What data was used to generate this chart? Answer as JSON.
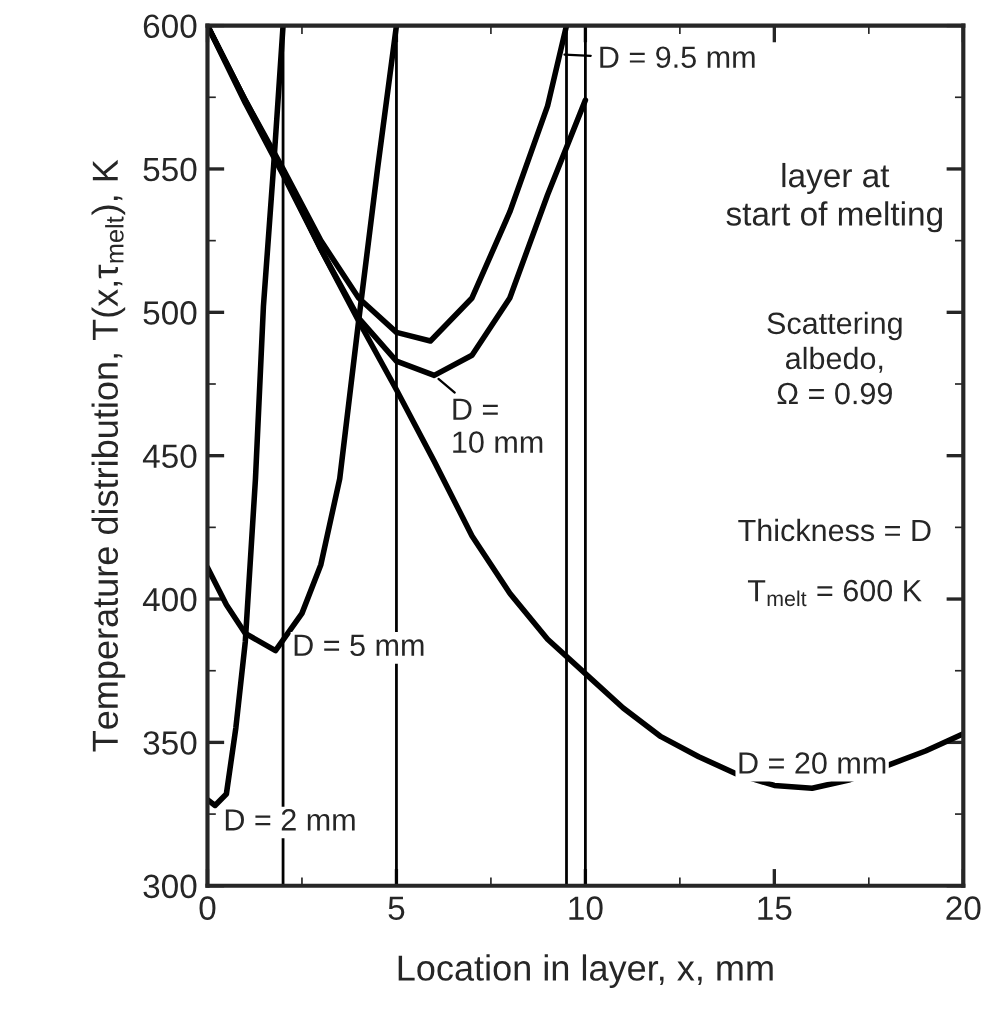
{
  "chart_data": {
    "type": "line",
    "xlabel": "Location in layer, x, mm",
    "ylabel": "Temperature distribution, T(x,τ$_{melt}$), K",
    "xlim": [
      0,
      20
    ],
    "xticks": [
      0,
      5,
      10,
      15,
      20
    ],
    "ylim": [
      300,
      600
    ],
    "yticks": [
      300,
      350,
      400,
      450,
      500,
      550,
      600
    ],
    "grid": false,
    "marker": "none",
    "line_style": "solid",
    "series": [
      {
        "color": "#000000",
        "x": [
          0,
          0.2,
          0.5,
          0.75,
          1.0,
          1.27,
          1.48,
          1.75,
          2.0
        ],
        "values": [
          330,
          328,
          332,
          355,
          385,
          442,
          502,
          551,
          600
        ]
      },
      {
        "color": "#000000",
        "x": [
          0,
          0.5,
          1.0,
          1.8,
          2.5,
          3.0,
          3.5,
          4.0,
          4.5,
          5.0
        ],
        "values": [
          411,
          398,
          388,
          382,
          395,
          412,
          442,
          497,
          550,
          600
        ]
      },
      {
        "color": "#000000",
        "x": [
          0,
          1,
          2,
          3,
          4,
          5,
          5.9,
          7,
          8,
          9,
          9.5
        ],
        "values": [
          600,
          574,
          550,
          525,
          505,
          493,
          490,
          505,
          535,
          572,
          600
        ]
      },
      {
        "color": "#000000",
        "x": [
          0,
          1,
          2,
          3,
          4,
          5,
          6,
          7,
          8,
          9,
          10
        ],
        "values": [
          600,
          574,
          549,
          522,
          498,
          483,
          478,
          485,
          505,
          541,
          574
        ]
      },
      {
        "color": "#000000",
        "x": [
          0,
          1,
          2,
          3,
          4,
          5,
          6,
          7,
          8,
          9,
          10,
          11,
          12,
          13,
          14,
          15,
          16,
          17,
          18,
          19,
          20
        ],
        "values": [
          600,
          573,
          548,
          522,
          497,
          473,
          448,
          422,
          402,
          386,
          374,
          362,
          352,
          345,
          339,
          335,
          334,
          337,
          342,
          347,
          353
        ]
      }
    ],
    "ref_lines": [
      {
        "axis": "x",
        "value": 2,
        "color": "#000000"
      },
      {
        "axis": "x",
        "value": 5,
        "color": "#000000"
      },
      {
        "axis": "x",
        "value": 9.5,
        "color": "#000000"
      },
      {
        "axis": "x",
        "value": 10,
        "color": "#000000"
      }
    ],
    "annotations": [
      {
        "text": "D = 2 mm",
        "x": 0.2,
        "y": 328
      },
      {
        "text": "D = 5 mm",
        "x": 1.8,
        "y": 382
      },
      {
        "text": "D = 9.5 mm",
        "x": 9.3,
        "y": 590
      },
      {
        "text": "D =\n10 mm",
        "x": 6.0,
        "y": 478
      },
      {
        "text": "D = 20 mm",
        "x": 16,
        "y": 334
      },
      "layer at\nstart of melting",
      "Scattering\nalbedo,\nΩ = 0.99",
      "Thickness = D",
      "T$_{melt}$ = 600 K"
    ]
  }
}
